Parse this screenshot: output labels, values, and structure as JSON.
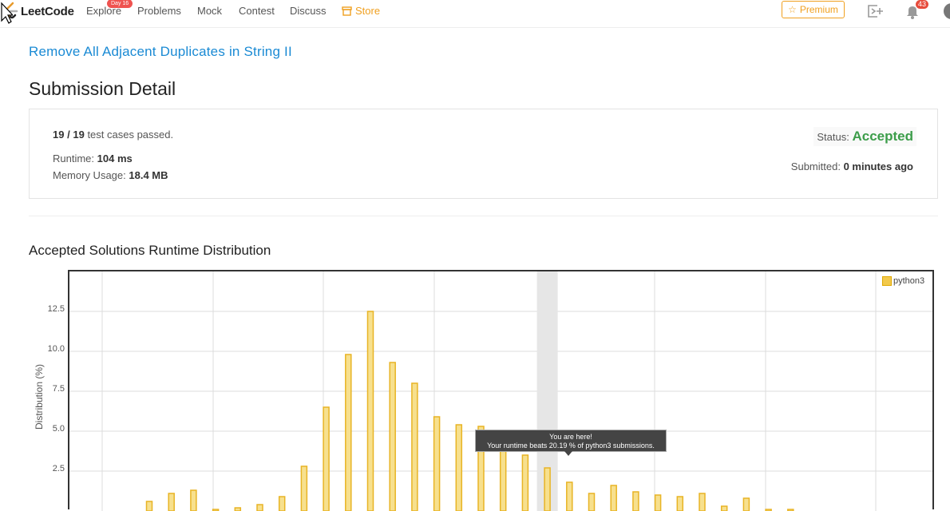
{
  "nav": {
    "logo_text": "LeetCode",
    "explore": "Explore",
    "explore_badge": "Day 16",
    "problems": "Problems",
    "mock": "Mock",
    "contest": "Contest",
    "discuss": "Discuss",
    "store": "Store",
    "premium": "Premium",
    "notification_count": "43",
    "icons": [
      "leetcode-logo",
      "store-icon",
      "star-icon",
      "playground-icon",
      "bell-icon",
      "avatar-icon"
    ],
    "colors": {
      "accent": "#f0a020",
      "badge": "#ef5350"
    }
  },
  "problem": {
    "title": "Remove All Adjacent Duplicates in String II"
  },
  "page": {
    "title": "Submission Detail"
  },
  "submission": {
    "passed": "19",
    "separator": "/",
    "total": "19",
    "cases_text": "test cases passed.",
    "runtime_label": "Runtime:",
    "runtime_value": "104 ms",
    "memory_label": "Memory Usage:",
    "memory_value": "18.4 MB",
    "status_label": "Status:",
    "status_value": "Accepted",
    "status_color": "#3c9d4a",
    "submitted_label": "Submitted:",
    "submitted_value": "0 minutes ago"
  },
  "distribution": {
    "title": "Accepted Solutions Runtime Distribution"
  },
  "chart_data": {
    "type": "bar",
    "title": "",
    "xlabel": "",
    "ylabel": "Distribution (%)",
    "ylim": [
      0,
      14.5
    ],
    "yticks": [
      "2.5",
      "5.0",
      "7.5",
      "10.0",
      "12.5"
    ],
    "grid": true,
    "legend_position": "top-right",
    "series": [
      {
        "name": "python3",
        "color": "#f2c94c",
        "values": [
          0.6,
          1.1,
          1.3,
          0.1,
          0.2,
          0.4,
          0.9,
          2.8,
          6.5,
          9.8,
          12.5,
          9.3,
          8.0,
          5.9,
          5.4,
          5.3,
          4.7,
          3.5,
          2.7,
          1.8,
          1.1,
          1.6,
          1.2,
          1.0,
          0.9,
          1.1,
          0.3,
          0.8,
          0.1,
          0.1
        ]
      }
    ],
    "highlight_index": 18,
    "tooltip": {
      "line1": "You are here!",
      "line2": "Your runtime beats 20.19 % of python3 submissions."
    }
  }
}
